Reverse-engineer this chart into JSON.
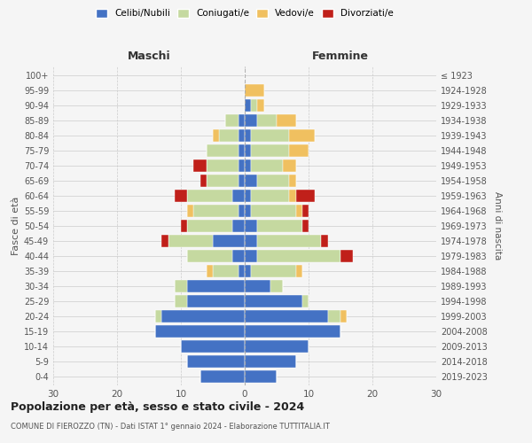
{
  "age_groups": [
    "0-4",
    "5-9",
    "10-14",
    "15-19",
    "20-24",
    "25-29",
    "30-34",
    "35-39",
    "40-44",
    "45-49",
    "50-54",
    "55-59",
    "60-64",
    "65-69",
    "70-74",
    "75-79",
    "80-84",
    "85-89",
    "90-94",
    "95-99",
    "100+"
  ],
  "birth_years": [
    "2019-2023",
    "2014-2018",
    "2009-2013",
    "2004-2008",
    "1999-2003",
    "1994-1998",
    "1989-1993",
    "1984-1988",
    "1979-1983",
    "1974-1978",
    "1969-1973",
    "1964-1968",
    "1959-1963",
    "1954-1958",
    "1949-1953",
    "1944-1948",
    "1939-1943",
    "1934-1938",
    "1929-1933",
    "1924-1928",
    "≤ 1923"
  ],
  "male_celibi": [
    7,
    9,
    10,
    14,
    13,
    9,
    9,
    1,
    2,
    5,
    2,
    1,
    2,
    1,
    1,
    1,
    1,
    1,
    0,
    0,
    0
  ],
  "male_coniugati": [
    0,
    0,
    0,
    0,
    1,
    2,
    2,
    4,
    7,
    7,
    7,
    7,
    7,
    5,
    5,
    5,
    3,
    2,
    0,
    0,
    0
  ],
  "male_vedovi": [
    0,
    0,
    0,
    0,
    0,
    0,
    0,
    1,
    0,
    0,
    0,
    1,
    0,
    0,
    0,
    0,
    1,
    0,
    0,
    0,
    0
  ],
  "male_divorziati": [
    0,
    0,
    0,
    0,
    0,
    0,
    0,
    0,
    0,
    1,
    1,
    0,
    2,
    1,
    2,
    0,
    0,
    0,
    0,
    0,
    0
  ],
  "female_celibi": [
    5,
    8,
    10,
    15,
    13,
    9,
    4,
    1,
    2,
    2,
    2,
    1,
    1,
    2,
    1,
    1,
    1,
    2,
    1,
    0,
    0
  ],
  "female_coniugati": [
    0,
    0,
    0,
    0,
    2,
    1,
    2,
    7,
    13,
    10,
    7,
    7,
    6,
    5,
    5,
    6,
    6,
    3,
    1,
    0,
    0
  ],
  "female_vedovi": [
    0,
    0,
    0,
    0,
    1,
    0,
    0,
    1,
    0,
    0,
    0,
    1,
    1,
    1,
    2,
    3,
    4,
    3,
    1,
    3,
    0
  ],
  "female_divorziati": [
    0,
    0,
    0,
    0,
    0,
    0,
    0,
    0,
    2,
    1,
    1,
    1,
    3,
    0,
    0,
    0,
    0,
    0,
    0,
    0,
    0
  ],
  "color_celibi": "#4472c4",
  "color_coniugati": "#c5d9a0",
  "color_vedovi": "#f0c060",
  "color_divorziati": "#c0201a",
  "xlim": [
    -30,
    30
  ],
  "xticks": [
    -30,
    -20,
    -10,
    0,
    10,
    20,
    30
  ],
  "xticklabels": [
    "30",
    "20",
    "10",
    "0",
    "10",
    "20",
    "30"
  ],
  "title": "Popolazione per età, sesso e stato civile - 2024",
  "subtitle": "COMUNE DI FIEROZZO (TN) - Dati ISTAT 1° gennaio 2024 - Elaborazione TUTTITALIA.IT",
  "ylabel_left": "Fasce di età",
  "ylabel_right": "Anni di nascita",
  "label_maschi": "Maschi",
  "label_femmine": "Femmine",
  "legend_celibi": "Celibi/Nubili",
  "legend_coniugati": "Coniugati/e",
  "legend_vedovi": "Vedovi/e",
  "legend_divorziati": "Divorziati/e",
  "bg_color": "#f5f5f5",
  "bar_height": 0.85
}
